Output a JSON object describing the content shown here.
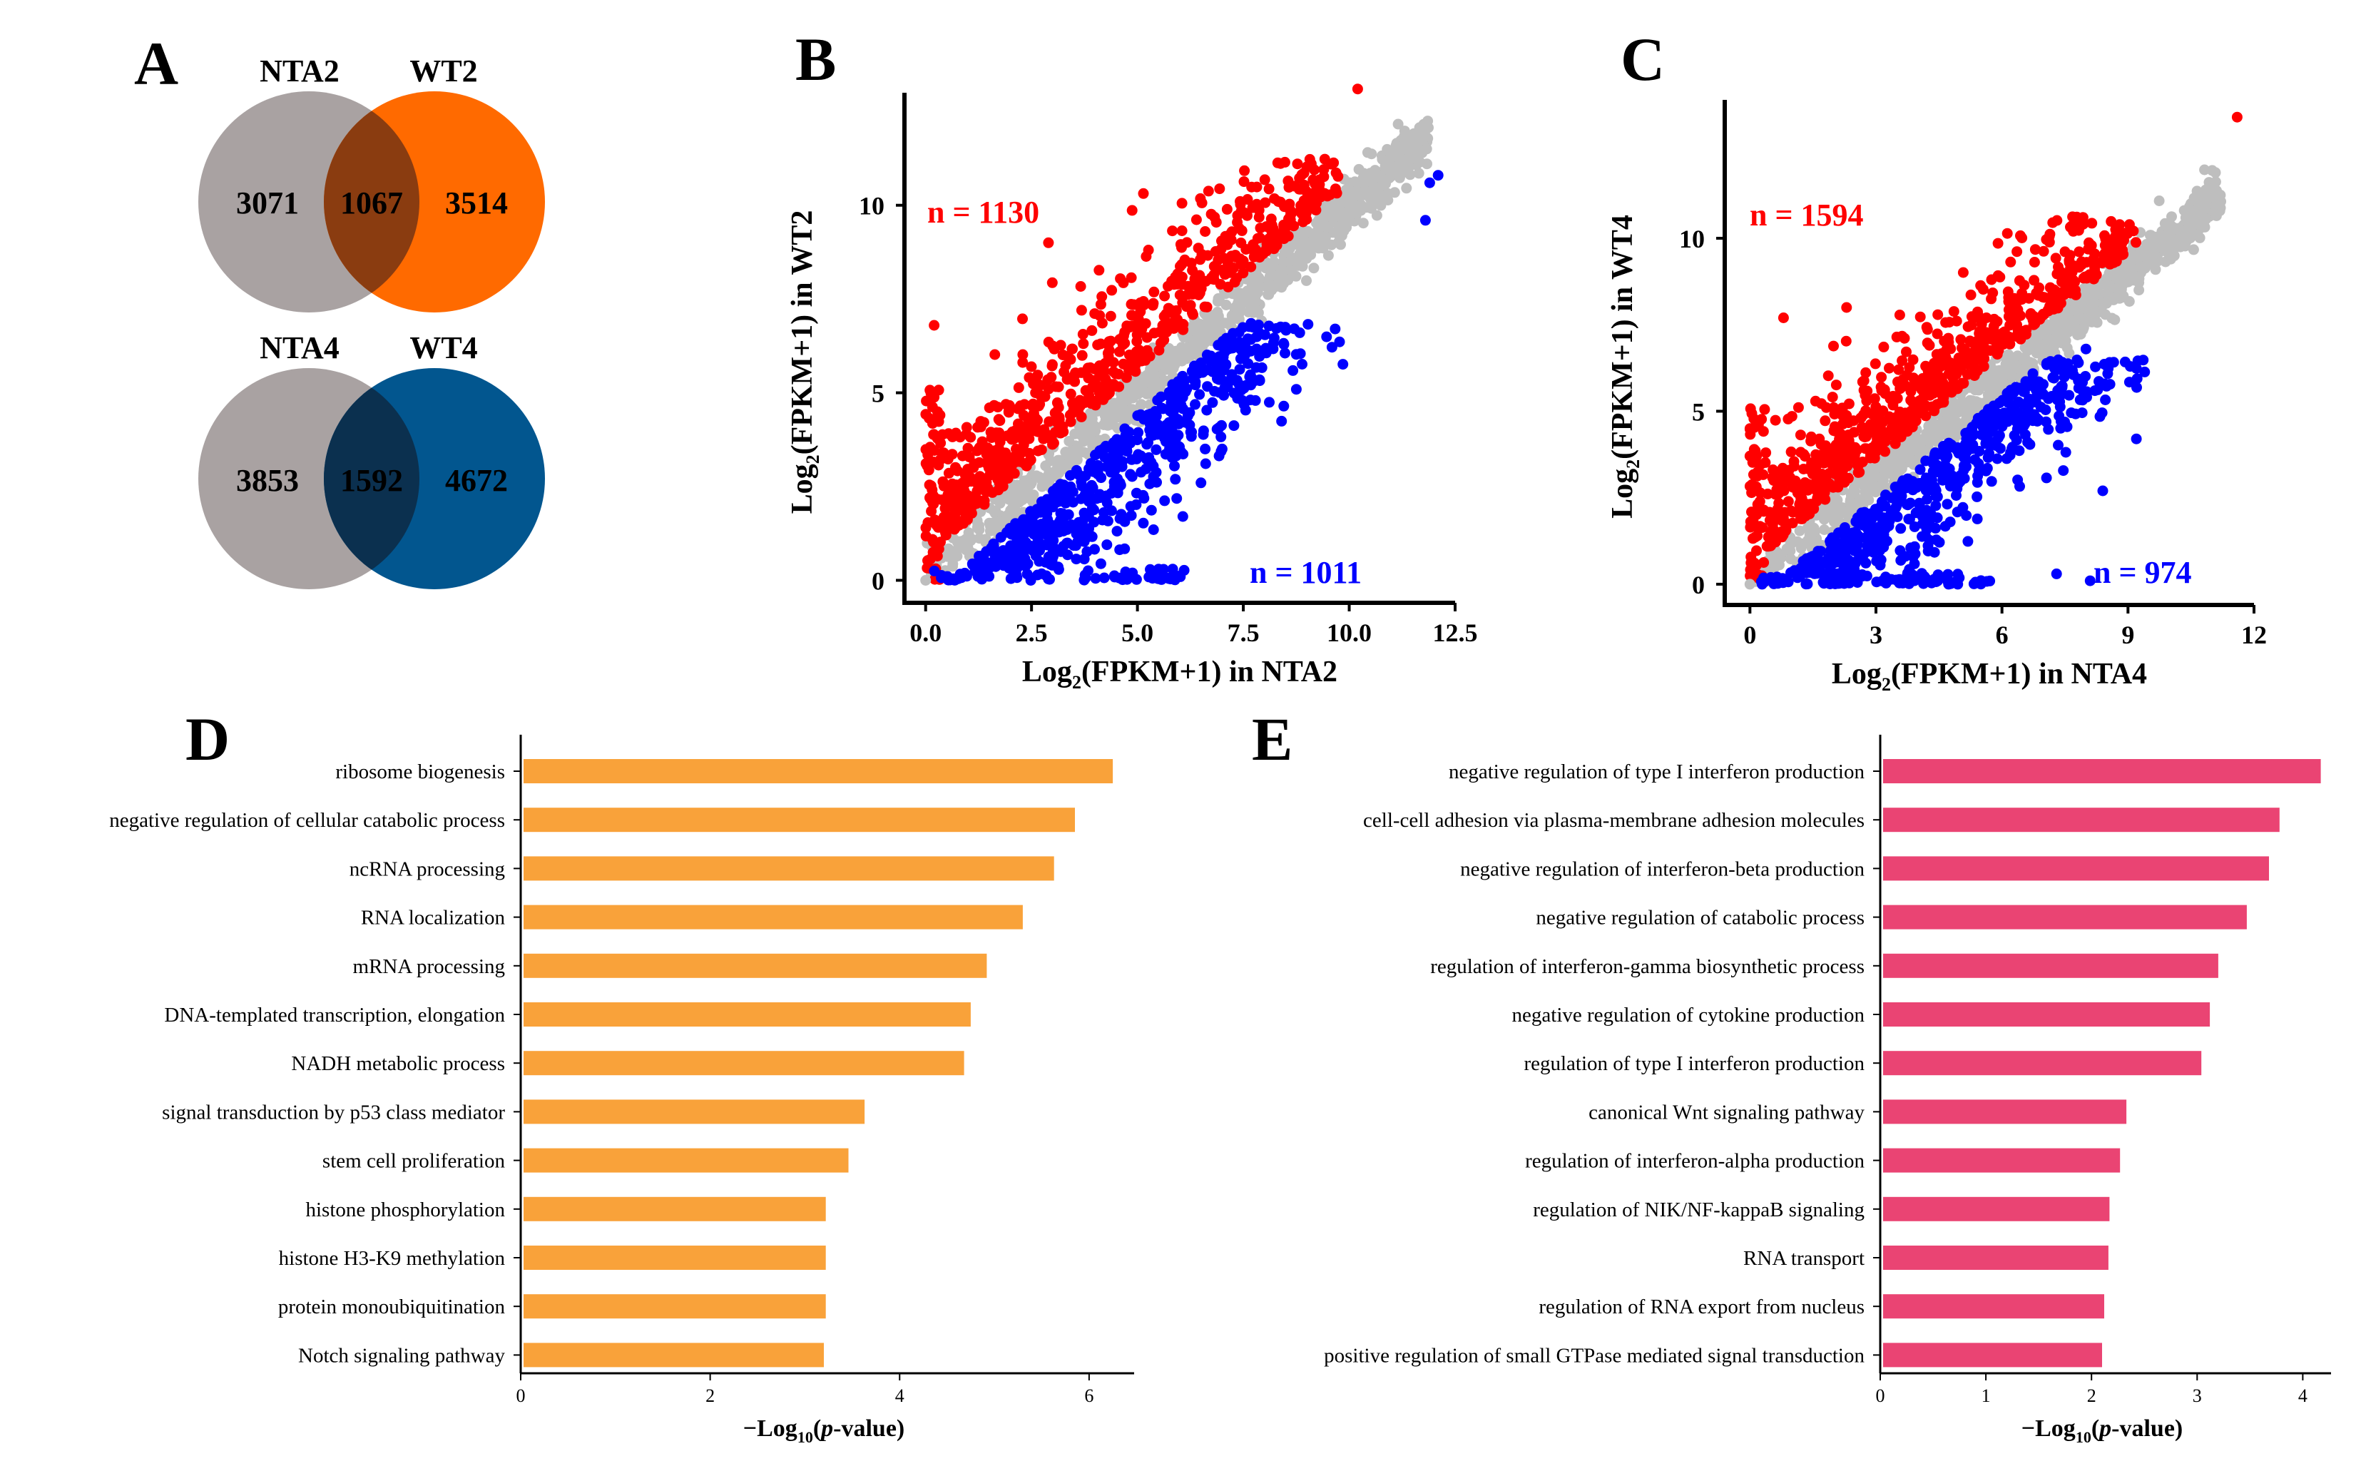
{
  "colors": {
    "gray_set": "#a9a2a2",
    "orange_set": "#ff6a00",
    "blue_set": "#02568f",
    "up_points": "#ff0000",
    "down_points": "#0000ff",
    "ns_points": "#bebebe",
    "bar_D": "#f9a23a",
    "bar_E": "#ea4473"
  },
  "panels": {
    "A": "A",
    "B": "B",
    "C": "C",
    "D": "D",
    "E": "E"
  },
  "chart_data": [
    {
      "type": "venn",
      "panel": "A",
      "diagrams": [
        {
          "left_label": "NTA2",
          "right_label": "WT2",
          "left_only": 3071,
          "overlap": 1067,
          "right_only": 3514
        },
        {
          "left_label": "NTA4",
          "right_label": "WT4",
          "left_only": 3853,
          "overlap": 1592,
          "right_only": 4672
        }
      ]
    },
    {
      "type": "scatter",
      "panel": "B",
      "xlabel_main": "Log",
      "xlabel_sub": "2",
      "xlabel_rest": "(FPKM+1) in NTA2",
      "ylabel_main": "Log",
      "ylabel_sub": "2",
      "ylabel_rest": "(FPKM+1) in WT2",
      "xlim": [
        -0.5,
        12.5
      ],
      "ylim": [
        -0.6,
        13
      ],
      "xticks": [
        0,
        2.5,
        5,
        7.5,
        10,
        12.5
      ],
      "xtick_labels": [
        "0.0",
        "2.5",
        "5.0",
        "7.5",
        "10.0",
        "12.5"
      ],
      "yticks": [
        0,
        5,
        10
      ],
      "ytick_labels": [
        "0",
        "5",
        "10"
      ],
      "up_label": "n = 1130",
      "down_label": "n = 1011",
      "up_count": 1130,
      "down_count": 1011,
      "up_outliers": [
        [
          10.2,
          13.1
        ],
        [
          6.6,
          9.3
        ],
        [
          0.2,
          6.8
        ],
        [
          2.9,
          9.0
        ]
      ],
      "down_outliers": [
        [
          12.1,
          10.8
        ],
        [
          11.9,
          10.6
        ],
        [
          11.8,
          9.6
        ],
        [
          7.0,
          3.5
        ],
        [
          6.6,
          3.5
        ],
        [
          5.5,
          0.3
        ]
      ]
    },
    {
      "type": "scatter",
      "panel": "C",
      "xlabel_main": "Log",
      "xlabel_sub": "2",
      "xlabel_rest": "(FPKM+1) in NTA4",
      "ylabel_main": "Log",
      "ylabel_sub": "2",
      "ylabel_rest": "(FPKM+1) in WT4",
      "xlim": [
        -0.6,
        12
      ],
      "ylim": [
        -0.6,
        14
      ],
      "xticks": [
        0,
        3,
        6,
        9,
        12
      ],
      "xtick_labels": [
        "0",
        "3",
        "6",
        "9",
        "12"
      ],
      "yticks": [
        0,
        5,
        10
      ],
      "ytick_labels": [
        "0",
        "5",
        "10"
      ],
      "up_label": "n = 1594",
      "down_label": "n = 974",
      "up_count": 1594,
      "down_count": 974,
      "up_outliers": [
        [
          11.6,
          13.5
        ],
        [
          7.8,
          10.3
        ],
        [
          0.8,
          7.7
        ],
        [
          2.3,
          8.0
        ]
      ],
      "down_outliers": [
        [
          9.2,
          4.2
        ],
        [
          8.0,
          6.8
        ],
        [
          8.4,
          2.7
        ],
        [
          8.1,
          0.1
        ],
        [
          7.3,
          0.3
        ]
      ]
    },
    {
      "type": "bar",
      "orientation": "horizontal",
      "panel": "D",
      "categories": [
        "ribosome biogenesis",
        "negative regulation of cellular catabolic process",
        "ncRNA processing",
        "RNA localization",
        "mRNA processing",
        "DNA-templated transcription, elongation",
        "NADH metabolic process",
        "signal transduction by p53 class mediator",
        "stem cell proliferation",
        "histone phosphorylation",
        "histone H3-K9 methylation",
        "protein monoubiquitination",
        "Notch signaling pathway"
      ],
      "values": [
        6.25,
        5.85,
        5.63,
        5.3,
        4.92,
        4.75,
        4.68,
        3.63,
        3.46,
        3.22,
        3.22,
        3.22,
        3.2
      ],
      "xlim": [
        0,
        6.4
      ],
      "xticks": [
        0,
        2,
        4,
        6
      ],
      "xlabel_pre": "−Log",
      "xlabel_sub": "10",
      "xlabel_open": "(",
      "xlabel_italic": "p",
      "xlabel_post": "-value)"
    },
    {
      "type": "bar",
      "orientation": "horizontal",
      "panel": "E",
      "categories": [
        "negative regulation of type I interferon production",
        "cell-cell adhesion via plasma-membrane adhesion molecules",
        "negative regulation of interferon-beta production",
        "negative regulation of catabolic process",
        "regulation of interferon-gamma biosynthetic process",
        "negative regulation of cytokine production",
        "regulation of type I interferon production",
        "canonical Wnt signaling pathway",
        "regulation of interferon-alpha production",
        "regulation of NIK/NF-kappaB signaling",
        "RNA transport",
        "regulation of RNA export from nucleus",
        "positive regulation of small GTPase mediated signal transduction"
      ],
      "values": [
        4.17,
        3.78,
        3.68,
        3.47,
        3.2,
        3.12,
        3.04,
        2.33,
        2.27,
        2.17,
        2.16,
        2.12,
        2.1
      ],
      "xlim": [
        0,
        4.2
      ],
      "xticks": [
        0,
        1,
        2,
        3,
        4
      ],
      "xlabel_pre": "−Log",
      "xlabel_sub": "10",
      "xlabel_open": "(",
      "xlabel_italic": "p",
      "xlabel_post": "-value)"
    }
  ]
}
